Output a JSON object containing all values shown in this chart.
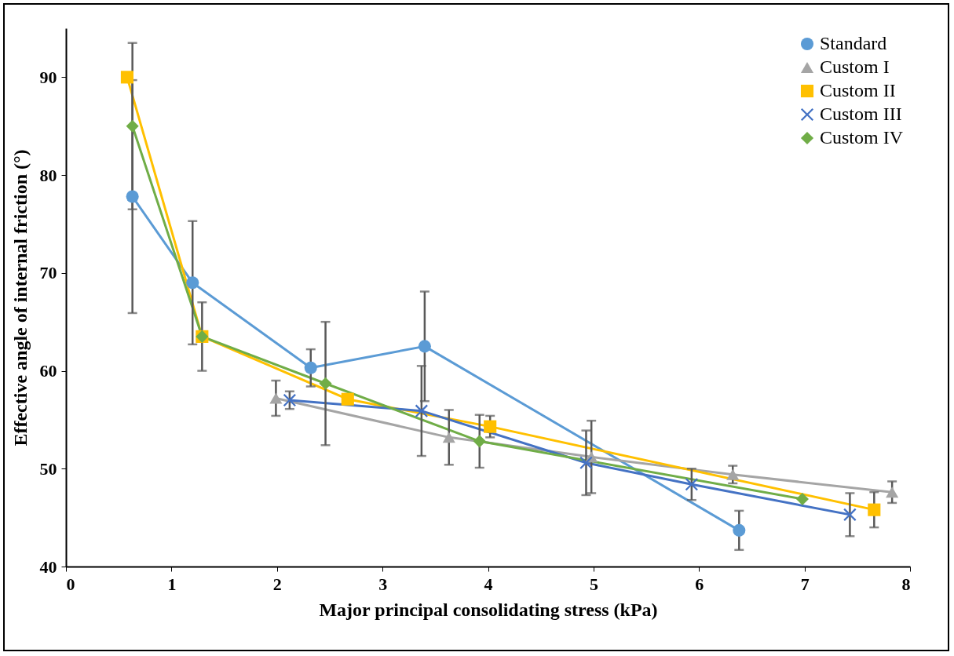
{
  "chart_data": {
    "type": "line",
    "xlabel": "Major principal consolidating stress (kPa)",
    "ylabel": "Effective angle of internal friction (°)",
    "xlim": [
      0,
      8
    ],
    "xticks": [
      0,
      1,
      2,
      3,
      4,
      5,
      6,
      7,
      8
    ],
    "ylim": [
      40,
      95
    ],
    "yticks": [
      40,
      50,
      60,
      70,
      80,
      90
    ],
    "grid": false,
    "legend": "top right",
    "series": [
      {
        "name": "Standard",
        "color": "#5b9bd5",
        "marker": "circle",
        "x": [
          0.63,
          1.2,
          2.32,
          3.4,
          6.38
        ],
        "values": [
          77.8,
          69,
          60.3,
          62.5,
          43.7
        ],
        "errors": [
          11.9,
          6.3,
          1.9,
          5.6,
          2.0
        ]
      },
      {
        "name": "Custom I",
        "color": "#a5a5a5",
        "marker": "triangle",
        "x": [
          1.99,
          3.63,
          4.98,
          6.32,
          7.83
        ],
        "values": [
          57.2,
          53.2,
          51.2,
          49.4,
          47.6
        ],
        "errors": [
          1.8,
          2.8,
          3.7,
          0.9,
          1.1
        ]
      },
      {
        "name": "Custom II",
        "color": "#ffc000",
        "marker": "square",
        "x": [
          0.58,
          1.29,
          2.67,
          4.02,
          7.66
        ],
        "values": [
          90,
          63.5,
          57.1,
          54.3,
          45.8
        ],
        "errors": [
          null,
          null,
          null,
          1.1,
          1.8
        ]
      },
      {
        "name": "Custom III",
        "color": "#4472c4",
        "marker": "cross",
        "x": [
          2.12,
          3.37,
          4.93,
          5.93,
          7.43
        ],
        "values": [
          57,
          55.9,
          50.6,
          48.4,
          45.3
        ],
        "errors": [
          0.9,
          4.6,
          3.3,
          1.6,
          2.2
        ]
      },
      {
        "name": "Custom IV",
        "color": "#70ad47",
        "marker": "diamond",
        "x": [
          0.63,
          1.29,
          2.46,
          3.92,
          6.98
        ],
        "values": [
          85,
          63.5,
          58.7,
          52.8,
          46.9
        ],
        "errors": [
          8.5,
          3.5,
          6.3,
          2.7,
          null
        ]
      }
    ]
  }
}
